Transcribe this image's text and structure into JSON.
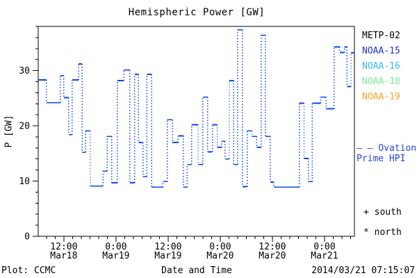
{
  "title": "Hemispheric Power [GW]",
  "axes": {
    "ylabel": "P [GW]",
    "xlabel": "Date and Time"
  },
  "footer": {
    "left": "Plot: CCMC",
    "right": "2014/03/21 07:15:07"
  },
  "legend": {
    "satellites": [
      {
        "label": "METP-02",
        "color": "#000000"
      },
      {
        "label": "NOAA-15",
        "color": "#2533cc"
      },
      {
        "label": "NOAA-16",
        "color": "#35b8f0"
      },
      {
        "label": "NOAA-18",
        "color": "#7de8a2"
      },
      {
        "label": "NOAA-19",
        "color": "#f7a428"
      }
    ],
    "line": {
      "sample": "– –",
      "label": "Ovation Prime HPI",
      "color": "#2547d8"
    },
    "markers": [
      {
        "symbol": "+",
        "label": "south"
      },
      {
        "symbol": "*",
        "label": "north"
      }
    ]
  },
  "chart_data": {
    "type": "line",
    "style": "step-plot-with-dotted-risers",
    "title": "Hemispheric Power [GW]",
    "xlabel": "Date and Time",
    "ylabel": "P [GW]",
    "series_name": "Ovation Prime HPI",
    "line_color": "#0847ee",
    "x_unit": "hours since 2014-03-18 00:00",
    "y_unit": "GW",
    "xlim": [
      6.1,
      78.9
    ],
    "ylim": [
      0,
      38
    ],
    "y_ticks": [
      0,
      10,
      20,
      30
    ],
    "y_minor_step": 2,
    "x_minor_step_hours": 2,
    "x_ticks": [
      {
        "hours": 12,
        "time": "12:00",
        "date": "Mar18"
      },
      {
        "hours": 24,
        "time": "0:00",
        "date": "Mar19"
      },
      {
        "hours": 36,
        "time": "12:00",
        "date": "Mar19"
      },
      {
        "hours": 48,
        "time": "0:00",
        "date": "Mar20"
      },
      {
        "hours": 60,
        "time": "12:00",
        "date": "Mar20"
      },
      {
        "hours": 72,
        "time": "0:00",
        "date": "Mar21"
      }
    ],
    "t_end": 78.9,
    "steps": [
      [
        6.1,
        28.3
      ],
      [
        8.0,
        24.2
      ],
      [
        11.2,
        29.1
      ],
      [
        12.0,
        25.1
      ],
      [
        13.1,
        18.4
      ],
      [
        13.9,
        28.3
      ],
      [
        15.4,
        31.2
      ],
      [
        16.2,
        15.2
      ],
      [
        17.0,
        19.1
      ],
      [
        18.1,
        9.1
      ],
      [
        21.0,
        11.8
      ],
      [
        22.0,
        18.1
      ],
      [
        23.0,
        9.7
      ],
      [
        24.3,
        28.2
      ],
      [
        25.8,
        30.1
      ],
      [
        27.2,
        9.7
      ],
      [
        28.3,
        29.3
      ],
      [
        29.2,
        17.0
      ],
      [
        30.2,
        10.8
      ],
      [
        31.1,
        29.3
      ],
      [
        32.2,
        8.9
      ],
      [
        34.8,
        9.9
      ],
      [
        35.8,
        21.1
      ],
      [
        37.0,
        17.0
      ],
      [
        38.3,
        18.2
      ],
      [
        39.5,
        8.9
      ],
      [
        40.4,
        13.0
      ],
      [
        41.4,
        20.2
      ],
      [
        42.9,
        13.0
      ],
      [
        44.0,
        25.2
      ],
      [
        45.1,
        15.3
      ],
      [
        46.2,
        20.2
      ],
      [
        47.3,
        16.1
      ],
      [
        48.3,
        17.2
      ],
      [
        49.1,
        14.0
      ],
      [
        50.1,
        28.2
      ],
      [
        51.1,
        13.0
      ],
      [
        52.0,
        37.4
      ],
      [
        53.1,
        9.0
      ],
      [
        54.2,
        19.1
      ],
      [
        55.3,
        18.1
      ],
      [
        56.4,
        16.1
      ],
      [
        57.4,
        36.4
      ],
      [
        58.4,
        18.1
      ],
      [
        59.5,
        9.8
      ],
      [
        60.3,
        8.9
      ],
      [
        66.2,
        24.1
      ],
      [
        67.3,
        14.1
      ],
      [
        68.3,
        9.9
      ],
      [
        69.2,
        24.1
      ],
      [
        71.1,
        25.2
      ],
      [
        72.4,
        23.1
      ],
      [
        74.2,
        34.3
      ],
      [
        75.5,
        33.3
      ],
      [
        76.6,
        34.3
      ],
      [
        77.2,
        27.1
      ],
      [
        78.1,
        33.2
      ]
    ]
  }
}
